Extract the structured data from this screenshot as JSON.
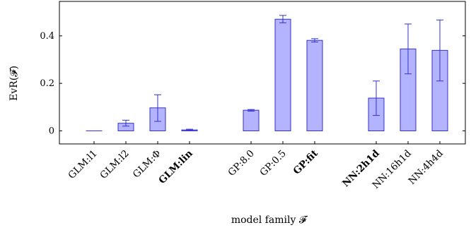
{
  "chart_data": {
    "type": "bar",
    "ylabel": "EvR(𝓕)",
    "xlabel": "model family 𝓕",
    "ylim": [
      -0.055,
      0.545
    ],
    "yticks": [
      0,
      0.2,
      0.4
    ],
    "ytick_labels": [
      "0",
      "0.2",
      "0.4"
    ],
    "grid": false,
    "bar_color": "#b3b3ff",
    "edge_color": "#3333cc",
    "categories": [
      "GLM:l1",
      "GLM:l2",
      "GLM:Φ",
      "GLM:lin",
      "GP:8.0",
      "GP:0.5",
      "GP:fit",
      "NN:2h1d",
      "NN:16h1d",
      "NN:4h4d"
    ],
    "bold_categories": [
      "GLM:lin",
      "GP:fit",
      "NN:2h1d"
    ],
    "groups": [
      0,
      0,
      0,
      0,
      1,
      1,
      1,
      2,
      2,
      2
    ],
    "values": [
      0.0,
      0.032,
      0.097,
      0.004,
      0.087,
      0.47,
      0.381,
      0.138,
      0.345,
      0.339
    ],
    "err_low": [
      0.0,
      0.02,
      0.04,
      0.001,
      0.083,
      0.455,
      0.374,
      0.065,
      0.24,
      0.21
    ],
    "err_high": [
      0.0,
      0.045,
      0.152,
      0.007,
      0.09,
      0.486,
      0.388,
      0.21,
      0.45,
      0.467
    ]
  }
}
